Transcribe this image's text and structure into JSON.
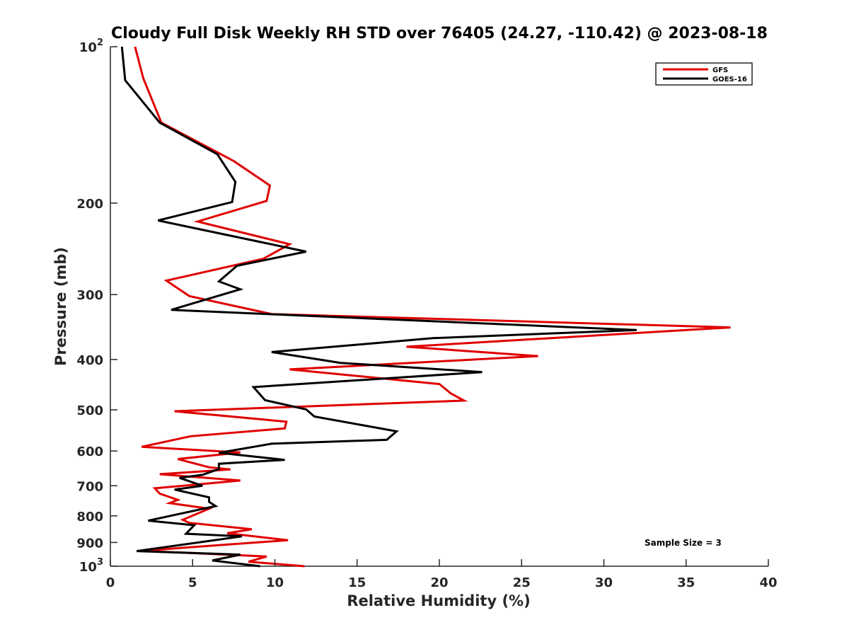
{
  "chart_data": {
    "type": "line",
    "title": "Cloudy Full Disk Weekly RH STD over 76405 (24.27, -110.42) @ 2023-08-18",
    "xlabel": "Relative Humidity (%)",
    "ylabel": "Pressure (mb)",
    "xlim": [
      0,
      40
    ],
    "ylim": [
      100,
      1000
    ],
    "y_scale": "log",
    "y_reversed": true,
    "grid": false,
    "legend_position": "top-right",
    "x_ticks": [
      0,
      5,
      10,
      15,
      20,
      25,
      30,
      35,
      40
    ],
    "y_ticks": [
      {
        "value": 100,
        "base": "10",
        "exp": "2"
      },
      {
        "value": 200,
        "label": "200"
      },
      {
        "value": 300,
        "label": "300"
      },
      {
        "value": 400,
        "label": "400"
      },
      {
        "value": 500,
        "label": "500"
      },
      {
        "value": 600,
        "label": "600"
      },
      {
        "value": 700,
        "label": "700"
      },
      {
        "value": 800,
        "label": "800"
      },
      {
        "value": 900,
        "label": "900"
      },
      {
        "value": 1000,
        "base": "10",
        "exp": "3"
      }
    ],
    "annotation": "Sample Size = 3",
    "series": [
      {
        "name": "GFS",
        "color": "#e00000",
        "points": [
          [
            1.5,
            100
          ],
          [
            2.0,
            115
          ],
          [
            3.1,
            140
          ],
          [
            7.5,
            166
          ],
          [
            9.7,
            185
          ],
          [
            9.5,
            198
          ],
          [
            5.3,
            217
          ],
          [
            10.9,
            240
          ],
          [
            9.3,
            256
          ],
          [
            3.4,
            282
          ],
          [
            4.8,
            302
          ],
          [
            9.8,
            327
          ],
          [
            37.7,
            347
          ],
          [
            18.0,
            378
          ],
          [
            26.0,
            394
          ],
          [
            10.9,
            418
          ],
          [
            20.0,
            446
          ],
          [
            20.7,
            465
          ],
          [
            21.5,
            480
          ],
          [
            3.9,
            503
          ],
          [
            10.7,
            527
          ],
          [
            10.6,
            543
          ],
          [
            4.9,
            562
          ],
          [
            1.9,
            589
          ],
          [
            7.9,
            604
          ],
          [
            4.1,
            622
          ],
          [
            6.0,
            645
          ],
          [
            7.3,
            651
          ],
          [
            3.0,
            665
          ],
          [
            7.9,
            684
          ],
          [
            2.7,
            708
          ],
          [
            3.0,
            725
          ],
          [
            4.1,
            745
          ],
          [
            3.6,
            756
          ],
          [
            6.0,
            775
          ],
          [
            4.4,
            814
          ],
          [
            4.8,
            825
          ],
          [
            8.6,
            849
          ],
          [
            7.1,
            864
          ],
          [
            10.8,
            891
          ],
          [
            1.9,
            934
          ],
          [
            9.5,
            958
          ],
          [
            8.4,
            980
          ],
          [
            11.8,
            1000
          ]
        ]
      },
      {
        "name": "GOES-16",
        "color": "#000000",
        "points": [
          [
            0.7,
            100
          ],
          [
            0.9,
            116
          ],
          [
            3.0,
            140
          ],
          [
            6.5,
            161
          ],
          [
            7.6,
            182
          ],
          [
            7.4,
            199
          ],
          [
            2.9,
            216
          ],
          [
            11.9,
            248
          ],
          [
            7.7,
            264
          ],
          [
            6.6,
            283
          ],
          [
            7.9,
            293
          ],
          [
            3.7,
            321
          ],
          [
            32.0,
            351
          ],
          [
            19.6,
            364
          ],
          [
            9.8,
            387
          ],
          [
            14.0,
            406
          ],
          [
            22.6,
            423
          ],
          [
            8.7,
            452
          ],
          [
            9.4,
            479
          ],
          [
            11.9,
            499
          ],
          [
            12.4,
            515
          ],
          [
            17.4,
            550
          ],
          [
            16.8,
            571
          ],
          [
            9.8,
            581
          ],
          [
            6.6,
            605
          ],
          [
            10.6,
            624
          ],
          [
            6.6,
            635
          ],
          [
            6.6,
            650
          ],
          [
            5.6,
            667
          ],
          [
            4.2,
            676
          ],
          [
            5.6,
            700
          ],
          [
            3.9,
            712
          ],
          [
            6.0,
            737
          ],
          [
            6.0,
            752
          ],
          [
            6.4,
            766
          ],
          [
            2.3,
            817
          ],
          [
            5.1,
            834
          ],
          [
            4.6,
            866
          ],
          [
            8.0,
            876
          ],
          [
            1.6,
            935
          ],
          [
            7.9,
            950
          ],
          [
            6.2,
            975
          ],
          [
            9.1,
            1000
          ]
        ]
      }
    ]
  }
}
